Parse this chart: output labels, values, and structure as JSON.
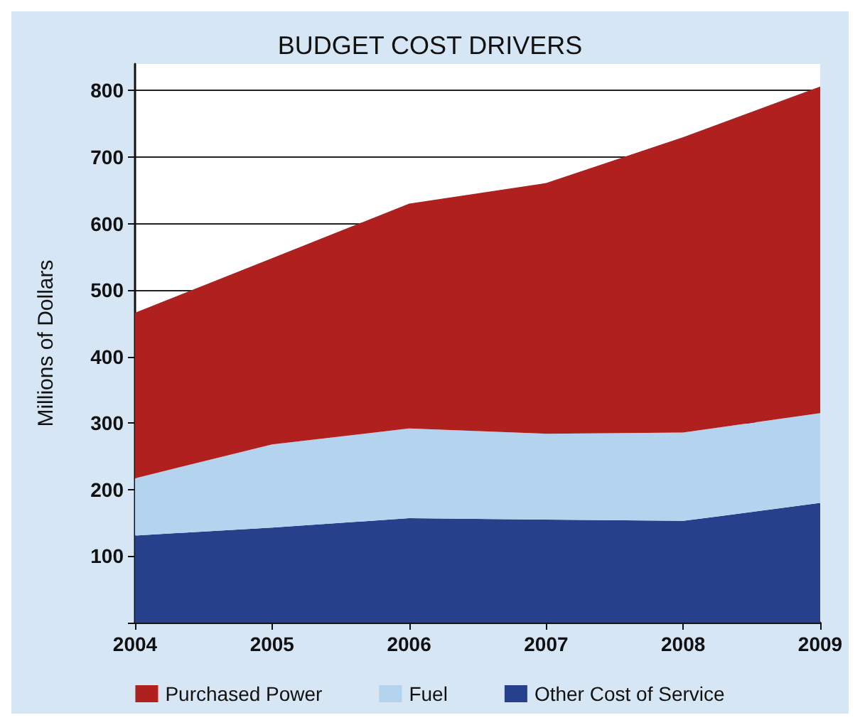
{
  "chart_data": {
    "type": "area",
    "title": "BUDGET COST DRIVERS",
    "ylabel": "Millions of Dollars",
    "categories": [
      "2004",
      "2005",
      "2006",
      "2007",
      "2008",
      "2009"
    ],
    "stacked": true,
    "series": [
      {
        "name": "Other Cost of Service",
        "color": "#27408b",
        "values": [
          131,
          143,
          157,
          155,
          153,
          180
        ]
      },
      {
        "name": "Fuel",
        "color": "#b3d3ee",
        "values": [
          86,
          125,
          135,
          129,
          133,
          135
        ]
      },
      {
        "name": "Purchased Power",
        "color": "#b0201e",
        "values": [
          249,
          280,
          338,
          377,
          444,
          491
        ]
      }
    ],
    "ylim": [
      0,
      840
    ],
    "yticks": [
      {
        "value": 0,
        "label": null
      },
      100,
      200,
      300,
      400,
      500,
      600,
      700,
      800
    ],
    "grid": "y",
    "legend": "bottom"
  }
}
